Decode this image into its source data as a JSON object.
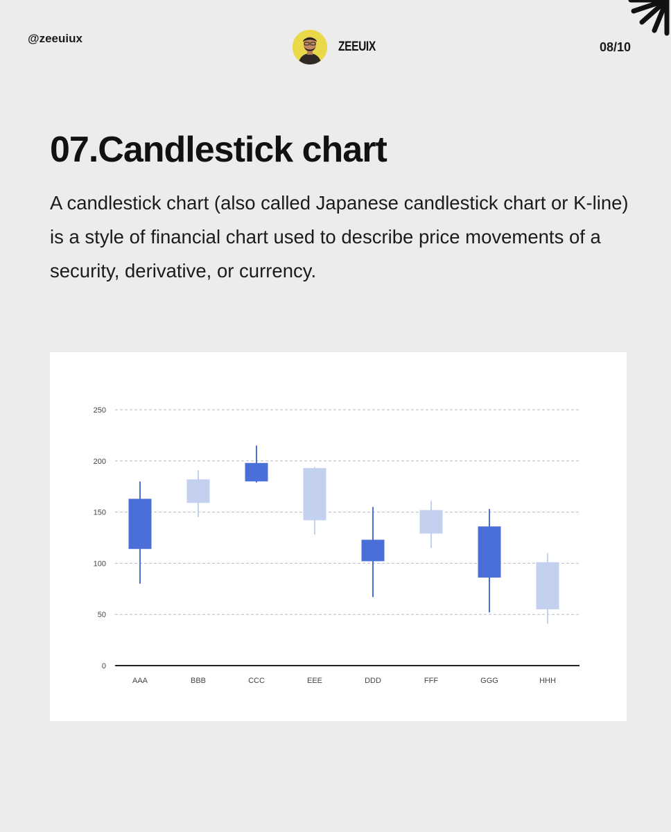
{
  "header": {
    "handle": "@zeeuiux",
    "brand_name": "ZEEUIX",
    "page_indicator": "08/10"
  },
  "content": {
    "title": "07.Candlestick chart",
    "description": "A candlestick chart (also called Japanese candlestick chart or K-line) is a style of financial chart used to describe price movements of a security, derivative, or currency."
  },
  "colors": {
    "background": "#ececec",
    "card": "#ffffff",
    "bearish": "#4a6fd8",
    "bullish": "#c3d0f0",
    "grid": "#b8b8c0",
    "axis": "#222222"
  },
  "icons": {
    "avatar": "person-avatar-icon",
    "corner": "starburst-icon"
  },
  "chart_data": {
    "type": "candlestick",
    "title": "",
    "xlabel": "",
    "ylabel": "",
    "ylim": [
      0,
      250
    ],
    "yticks": [
      0,
      50,
      100,
      150,
      200,
      250
    ],
    "grid": true,
    "categories": [
      "AAA",
      "BBB",
      "CCC",
      "EEE",
      "DDD",
      "FFF",
      "GGG",
      "HHH"
    ],
    "candles": [
      {
        "label": "AAA",
        "open": 163,
        "close": 114,
        "high": 180,
        "low": 80,
        "direction": "down"
      },
      {
        "label": "BBB",
        "open": 159,
        "close": 182,
        "high": 191,
        "low": 145,
        "direction": "up"
      },
      {
        "label": "CCC",
        "open": 198,
        "close": 180,
        "high": 215,
        "low": 179,
        "direction": "down"
      },
      {
        "label": "EEE",
        "open": 142,
        "close": 193,
        "high": 194,
        "low": 128,
        "direction": "up"
      },
      {
        "label": "DDD",
        "open": 123,
        "close": 102,
        "high": 155,
        "low": 67,
        "direction": "down"
      },
      {
        "label": "FFF",
        "open": 129,
        "close": 152,
        "high": 161,
        "low": 115,
        "direction": "up"
      },
      {
        "label": "GGG",
        "open": 136,
        "close": 86,
        "high": 153,
        "low": 52,
        "direction": "down"
      },
      {
        "label": "HHH",
        "open": 55,
        "close": 101,
        "high": 110,
        "low": 41,
        "direction": "up"
      }
    ]
  }
}
